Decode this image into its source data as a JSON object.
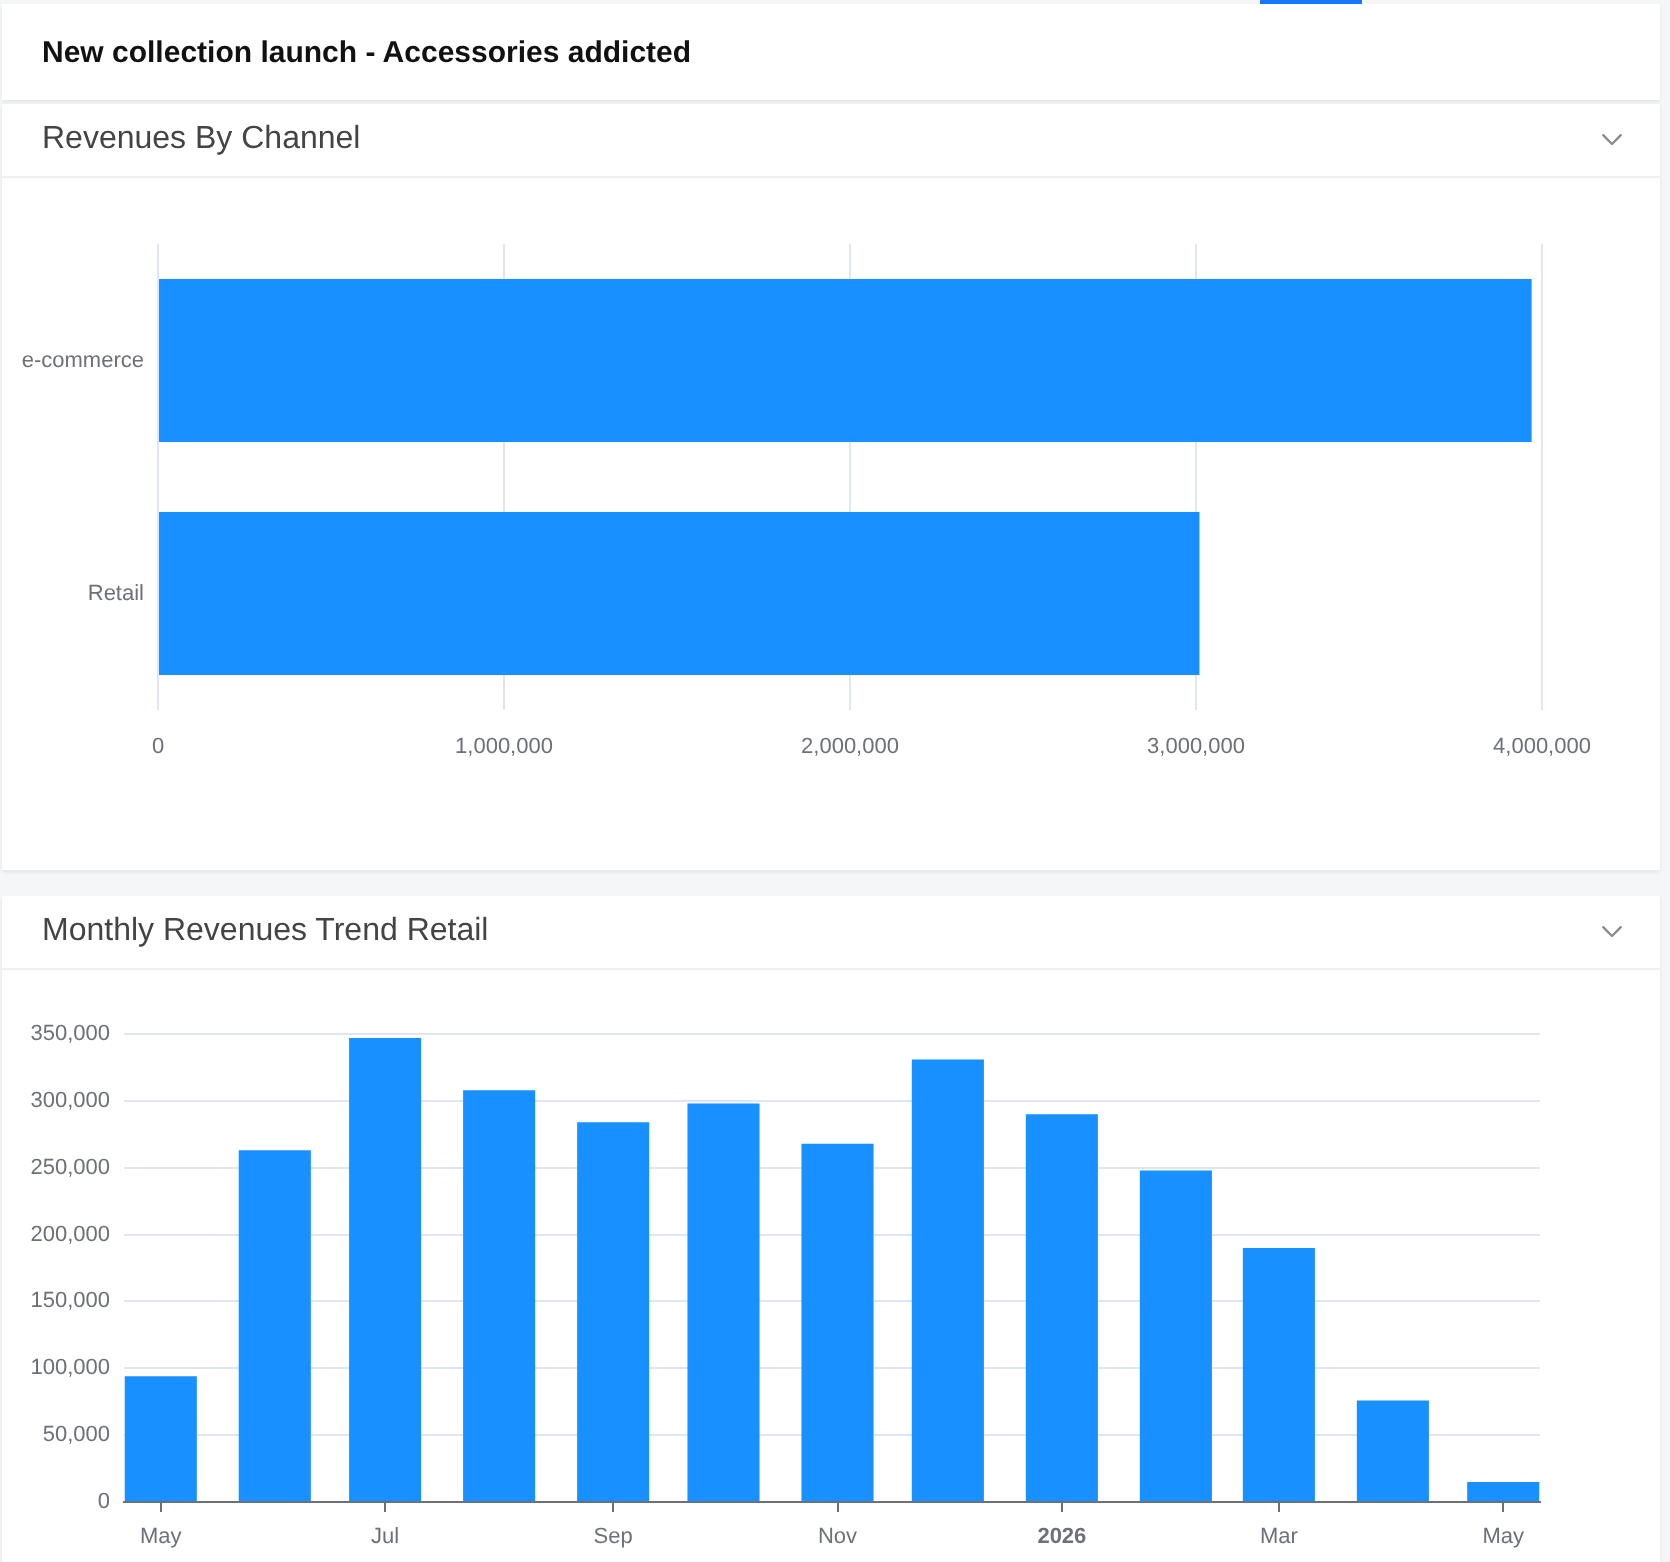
{
  "chart_data": [
    {
      "type": "bar",
      "orientation": "horizontal",
      "title": "Revenues By Channel",
      "annotations": [
        "New collection launch - Accessories addicted"
      ],
      "categories": [
        "e-commerce",
        "Retail"
      ],
      "values": [
        3970000,
        3010000
      ],
      "color": "#1890ff",
      "xlim": [
        0,
        4000000
      ],
      "xticks": [
        0,
        {
          "value": 1000000,
          "label": "1,000,000"
        },
        {
          "value": 2000000,
          "label": "2,000,000"
        },
        {
          "value": 3000000,
          "label": "3,000,000"
        },
        {
          "value": 4000000,
          "label": "4,000,000"
        }
      ],
      "grid": "x"
    },
    {
      "type": "bar",
      "title": "Monthly Revenues Trend Retail",
      "x": [
        "2025-05",
        "2025-06",
        "2025-07",
        "2025-08",
        "2025-09",
        "2025-10",
        "2025-11",
        "2025-12",
        "2026-01",
        "2026-02",
        "2026-03",
        "2026-04",
        "2026-05"
      ],
      "values": [
        94000,
        263000,
        347000,
        308000,
        284000,
        298000,
        268000,
        331000,
        290000,
        248000,
        190000,
        76000,
        15000
      ],
      "color": "#1890ff",
      "xlim": [
        "2025-04-21",
        "2026-05-11"
      ],
      "xticks": [
        {
          "value": "2025-05",
          "label": "May"
        },
        {
          "value": "2025-07",
          "label": "Jul"
        },
        {
          "value": "2025-09",
          "label": "Sep"
        },
        {
          "value": "2025-11",
          "label": "Nov"
        },
        {
          "value": "2026-01",
          "label": "2026"
        },
        {
          "value": "2026-03",
          "label": "Mar"
        },
        {
          "value": "2026-05",
          "label": "May"
        }
      ],
      "ylim": [
        0,
        350000
      ],
      "yticks": [
        0,
        {
          "value": 50000,
          "label": "50,000"
        },
        {
          "value": 100000,
          "label": "100,000"
        },
        {
          "value": 150000,
          "label": "150,000"
        },
        {
          "value": 200000,
          "label": "200,000"
        },
        {
          "value": 250000,
          "label": "250,000"
        },
        {
          "value": 300000,
          "label": "300,000"
        },
        {
          "value": 350000,
          "label": "350,000"
        }
      ],
      "grid": "y"
    }
  ]
}
